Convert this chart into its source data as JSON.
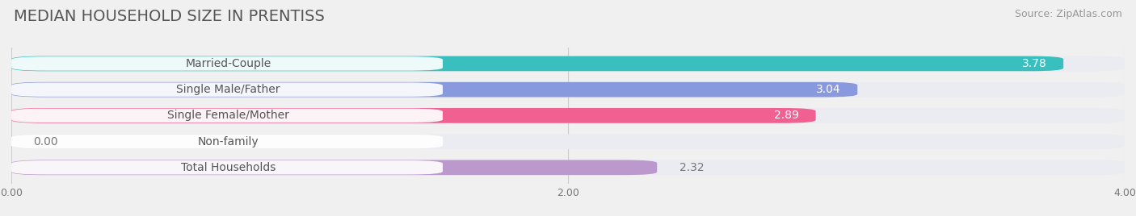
{
  "title": "MEDIAN HOUSEHOLD SIZE IN PRENTISS",
  "source": "Source: ZipAtlas.com",
  "categories": [
    "Married-Couple",
    "Single Male/Father",
    "Single Female/Mother",
    "Non-family",
    "Total Households"
  ],
  "values": [
    3.78,
    3.04,
    2.89,
    0.0,
    2.32
  ],
  "bar_colors": [
    "#3abfbf",
    "#8899dd",
    "#f06090",
    "#f5c89a",
    "#bb99cc"
  ],
  "bar_labels": [
    "3.78",
    "3.04",
    "2.89",
    "0.00",
    "2.32"
  ],
  "label_in_bar": [
    true,
    true,
    true,
    false,
    false
  ],
  "xlim": [
    0,
    4.0
  ],
  "xticks": [
    0.0,
    2.0,
    4.0
  ],
  "xtick_labels": [
    "0.00",
    "2.00",
    "4.00"
  ],
  "background_color": "#f0f0f0",
  "bar_background_color": "#e8e8ee",
  "title_fontsize": 14,
  "source_fontsize": 9,
  "label_fontsize": 10,
  "category_fontsize": 10
}
